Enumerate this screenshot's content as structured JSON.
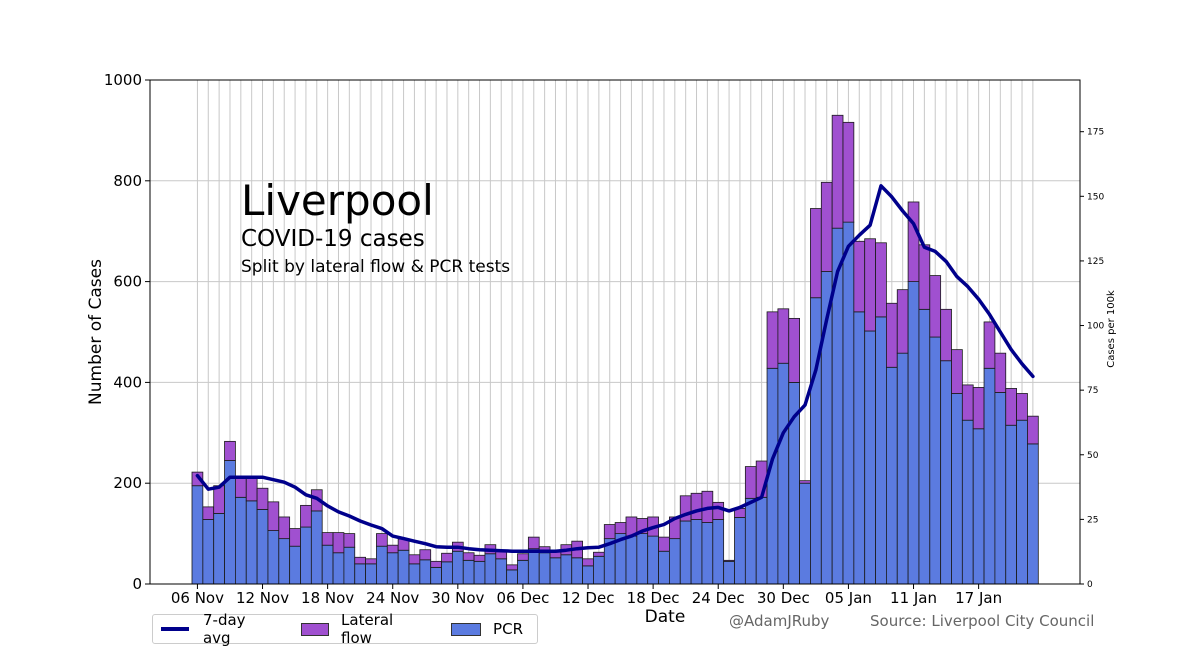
{
  "header": {
    "title": "Liverpool",
    "subtitle": "COVID-19 cases",
    "subtitle2": "Split by lateral flow & PCR tests"
  },
  "credits": {
    "author": "@AdamJRuby",
    "source": "Source: Liverpool City Council"
  },
  "legend": {
    "avg_label": "7-day avg",
    "lf_label": "Lateral flow",
    "pcr_label": "PCR"
  },
  "colors": {
    "pcr": "#5B7BE0",
    "lateral_flow": "#A050D0",
    "avg_line": "#00008B",
    "grid": "#c8c8c8"
  },
  "chart_data": {
    "type": "bar",
    "stacked": true,
    "xlabel": "Date",
    "ylabel": "Number of Cases",
    "y2label": "Cases per 100k",
    "ylim": [
      0,
      1000
    ],
    "yticks": [
      0,
      200,
      400,
      600,
      800,
      1000
    ],
    "y2lim": [
      0,
      195
    ],
    "y2ticks": [
      0,
      25,
      50,
      75,
      100,
      125,
      150,
      175
    ],
    "grid": true,
    "legend_position": "bottom-left",
    "x_tick_labels": [
      "06 Nov",
      "12 Nov",
      "18 Nov",
      "24 Nov",
      "30 Nov",
      "06 Dec",
      "12 Dec",
      "18 Dec",
      "24 Dec",
      "30 Dec",
      "05 Jan",
      "11 Jan",
      "17 Jan"
    ],
    "x_tick_every": 6,
    "series": [
      {
        "name": "PCR",
        "values": [
          195,
          128,
          140,
          245,
          172,
          165,
          148,
          106,
          90,
          75,
          113,
          145,
          77,
          62,
          73,
          40,
          40,
          75,
          62,
          67,
          40,
          48,
          33,
          44,
          65,
          47,
          45,
          60,
          50,
          28,
          47,
          70,
          62,
          52,
          58,
          52,
          36,
          55,
          90,
          100,
          95,
          100,
          95,
          65,
          90,
          125,
          128,
          122,
          128,
          45,
          132,
          170,
          172,
          428,
          438,
          400,
          200,
          568,
          620,
          706,
          718,
          540,
          502,
          530,
          430,
          458,
          600,
          545,
          490,
          443,
          378,
          325,
          308,
          428,
          380,
          315,
          325,
          278
        ]
      },
      {
        "name": "Lateral flow",
        "values": [
          27,
          25,
          55,
          38,
          42,
          48,
          42,
          57,
          43,
          35,
          43,
          42,
          25,
          40,
          27,
          13,
          10,
          25,
          15,
          22,
          18,
          20,
          12,
          17,
          18,
          15,
          12,
          18,
          15,
          10,
          13,
          23,
          12,
          15,
          20,
          33,
          14,
          8,
          28,
          22,
          38,
          30,
          38,
          28,
          43,
          50,
          52,
          62,
          34,
          2,
          18,
          63,
          72,
          112,
          108,
          127,
          5,
          177,
          177,
          224,
          198,
          140,
          183,
          147,
          127,
          126,
          158,
          128,
          122,
          102,
          87,
          70,
          82,
          92,
          78,
          73,
          53,
          55
        ]
      }
    ],
    "avg_series": {
      "name": "7-day avg",
      "values": [
        215,
        188,
        192,
        212,
        212,
        212,
        212,
        207,
        202,
        192,
        177,
        170,
        155,
        143,
        135,
        125,
        117,
        110,
        95,
        90,
        85,
        80,
        74,
        73,
        73,
        70,
        68,
        67,
        66,
        65,
        65,
        65,
        65,
        65,
        67,
        70,
        72,
        73,
        80,
        88,
        95,
        105,
        112,
        118,
        130,
        138,
        145,
        150,
        152,
        145,
        152,
        162,
        172,
        248,
        300,
        332,
        355,
        425,
        525,
        620,
        670,
        692,
        712,
        790,
        768,
        740,
        715,
        668,
        660,
        640,
        610,
        590,
        565,
        535,
        500,
        465,
        437,
        412
      ]
    }
  }
}
